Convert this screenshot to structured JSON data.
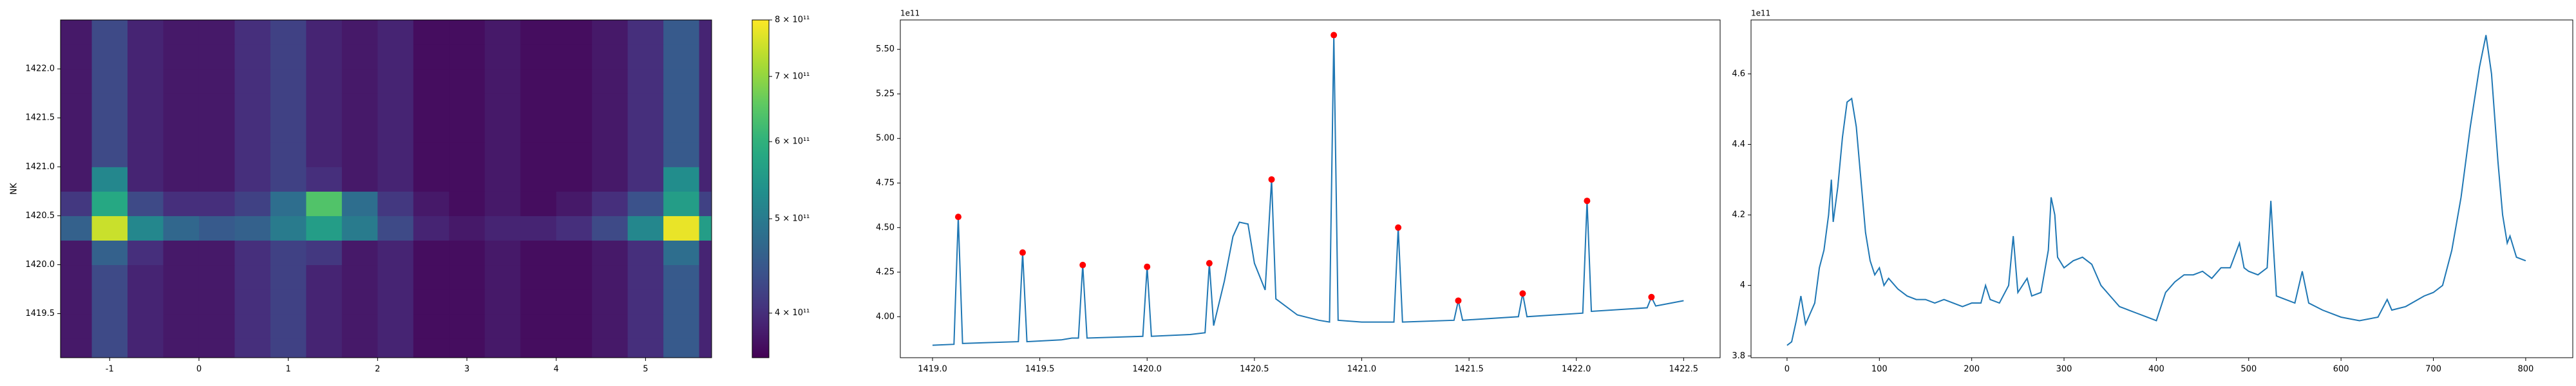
{
  "chart_data": [
    {
      "type": "heatmap",
      "ylabel": "NK",
      "x": [
        -1.4,
        -1.0,
        -0.6,
        -0.2,
        0.2,
        0.6,
        1.0,
        1.4,
        1.8,
        2.2,
        2.6,
        3.0,
        3.4,
        3.8,
        4.2,
        4.6,
        5.0,
        5.4,
        5.8
      ],
      "y": [
        1419.125,
        1419.375,
        1419.625,
        1419.875,
        1420.125,
        1420.375,
        1420.625,
        1420.875,
        1421.125,
        1421.375,
        1421.625,
        1421.875,
        1422.125,
        1422.375
      ],
      "z": [
        [
          380000000000.0,
          430000000000.0,
          390000000000.0,
          380000000000.0,
          380000000000.0,
          400000000000.0,
          420000000000.0,
          390000000000.0,
          380000000000.0,
          390000000000.0,
          370000000000.0,
          370000000000.0,
          380000000000.0,
          370000000000.0,
          370000000000.0,
          380000000000.0,
          400000000000.0,
          450000000000.0,
          390000000000.0
        ],
        [
          380000000000.0,
          430000000000.0,
          390000000000.0,
          380000000000.0,
          380000000000.0,
          400000000000.0,
          420000000000.0,
          390000000000.0,
          380000000000.0,
          390000000000.0,
          370000000000.0,
          370000000000.0,
          380000000000.0,
          370000000000.0,
          370000000000.0,
          380000000000.0,
          400000000000.0,
          450000000000.0,
          390000000000.0
        ],
        [
          380000000000.0,
          430000000000.0,
          390000000000.0,
          380000000000.0,
          380000000000.0,
          400000000000.0,
          420000000000.0,
          390000000000.0,
          380000000000.0,
          390000000000.0,
          370000000000.0,
          370000000000.0,
          380000000000.0,
          370000000000.0,
          370000000000.0,
          380000000000.0,
          400000000000.0,
          450000000000.0,
          390000000000.0
        ],
        [
          380000000000.0,
          430000000000.0,
          390000000000.0,
          380000000000.0,
          380000000000.0,
          400000000000.0,
          420000000000.0,
          390000000000.0,
          380000000000.0,
          390000000000.0,
          370000000000.0,
          370000000000.0,
          380000000000.0,
          370000000000.0,
          370000000000.0,
          380000000000.0,
          400000000000.0,
          450000000000.0,
          390000000000.0
        ],
        [
          380000000000.0,
          460000000000.0,
          400000000000.0,
          380000000000.0,
          380000000000.0,
          400000000000.0,
          420000000000.0,
          410000000000.0,
          380000000000.0,
          390000000000.0,
          370000000000.0,
          370000000000.0,
          380000000000.0,
          370000000000.0,
          370000000000.0,
          380000000000.0,
          400000000000.0,
          480000000000.0,
          390000000000.0
        ],
        [
          460000000000.0,
          750000000000.0,
          520000000000.0,
          470000000000.0,
          450000000000.0,
          460000000000.0,
          500000000000.0,
          560000000000.0,
          500000000000.0,
          430000000000.0,
          390000000000.0,
          380000000000.0,
          390000000000.0,
          390000000000.0,
          400000000000.0,
          430000000000.0,
          520000000000.0,
          780000000000.0,
          560000000000.0
        ],
        [
          410000000000.0,
          580000000000.0,
          430000000000.0,
          400000000000.0,
          400000000000.0,
          420000000000.0,
          480000000000.0,
          640000000000.0,
          480000000000.0,
          410000000000.0,
          380000000000.0,
          370000000000.0,
          380000000000.0,
          370000000000.0,
          380000000000.0,
          400000000000.0,
          440000000000.0,
          560000000000.0,
          420000000000.0
        ],
        [
          380000000000.0,
          520000000000.0,
          390000000000.0,
          380000000000.0,
          380000000000.0,
          400000000000.0,
          420000000000.0,
          400000000000.0,
          380000000000.0,
          390000000000.0,
          370000000000.0,
          370000000000.0,
          380000000000.0,
          370000000000.0,
          370000000000.0,
          380000000000.0,
          400000000000.0,
          530000000000.0,
          390000000000.0
        ],
        [
          380000000000.0,
          430000000000.0,
          390000000000.0,
          380000000000.0,
          380000000000.0,
          400000000000.0,
          420000000000.0,
          390000000000.0,
          380000000000.0,
          390000000000.0,
          370000000000.0,
          370000000000.0,
          380000000000.0,
          370000000000.0,
          370000000000.0,
          380000000000.0,
          400000000000.0,
          450000000000.0,
          390000000000.0
        ],
        [
          380000000000.0,
          430000000000.0,
          390000000000.0,
          380000000000.0,
          380000000000.0,
          400000000000.0,
          420000000000.0,
          390000000000.0,
          380000000000.0,
          390000000000.0,
          370000000000.0,
          370000000000.0,
          380000000000.0,
          370000000000.0,
          370000000000.0,
          380000000000.0,
          400000000000.0,
          450000000000.0,
          390000000000.0
        ],
        [
          380000000000.0,
          430000000000.0,
          390000000000.0,
          380000000000.0,
          380000000000.0,
          400000000000.0,
          420000000000.0,
          390000000000.0,
          380000000000.0,
          390000000000.0,
          370000000000.0,
          370000000000.0,
          380000000000.0,
          370000000000.0,
          370000000000.0,
          380000000000.0,
          400000000000.0,
          450000000000.0,
          390000000000.0
        ],
        [
          380000000000.0,
          430000000000.0,
          390000000000.0,
          380000000000.0,
          380000000000.0,
          400000000000.0,
          420000000000.0,
          390000000000.0,
          380000000000.0,
          390000000000.0,
          370000000000.0,
          370000000000.0,
          380000000000.0,
          370000000000.0,
          370000000000.0,
          380000000000.0,
          400000000000.0,
          450000000000.0,
          390000000000.0
        ],
        [
          380000000000.0,
          430000000000.0,
          390000000000.0,
          380000000000.0,
          380000000000.0,
          400000000000.0,
          420000000000.0,
          390000000000.0,
          380000000000.0,
          390000000000.0,
          370000000000.0,
          370000000000.0,
          380000000000.0,
          370000000000.0,
          370000000000.0,
          380000000000.0,
          400000000000.0,
          450000000000.0,
          390000000000.0
        ],
        [
          380000000000.0,
          430000000000.0,
          390000000000.0,
          380000000000.0,
          380000000000.0,
          400000000000.0,
          420000000000.0,
          390000000000.0,
          380000000000.0,
          390000000000.0,
          370000000000.0,
          370000000000.0,
          380000000000.0,
          370000000000.0,
          370000000000.0,
          380000000000.0,
          400000000000.0,
          450000000000.0,
          390000000000.0
        ]
      ],
      "xlim": [
        -1.55,
        5.74
      ],
      "ylim": [
        1419.05,
        1422.5
      ],
      "xticks": [
        -1,
        0,
        1,
        2,
        3,
        4,
        5
      ],
      "yticks": [
        1419.5,
        {
          "value": 1420,
          "label": "1420.0"
        },
        1420.5,
        {
          "value": 1421,
          "label": "1421.0"
        },
        1421.5,
        {
          "value": 1422,
          "label": "1422.0"
        }
      ],
      "colormap": "viridis",
      "colorbar": {
        "log": true,
        "clim": [
          360000000000.0,
          800000000000.0
        ],
        "ticks": [
          {
            "value": 400000000000.0,
            "label": "4 × 10¹¹"
          },
          {
            "value": 500000000000.0,
            "label": "5 × 10¹¹"
          },
          {
            "value": 600000000000.0,
            "label": "6 × 10¹¹"
          },
          {
            "value": 700000000000.0,
            "label": "7 × 10¹¹"
          },
          {
            "value": 800000000000.0,
            "label": "8 × 10¹¹"
          }
        ]
      }
    },
    {
      "type": "line",
      "offset": "1e11",
      "xlim": [
        1418.85,
        1422.67
      ],
      "ylim": [
        3.77,
        5.665
      ],
      "xticks": [
        {
          "value": 1419,
          "label": "1419.0"
        },
        1419.5,
        {
          "value": 1420,
          "label": "1420.0"
        },
        1420.5,
        {
          "value": 1421,
          "label": "1421.0"
        },
        1421.5,
        {
          "value": 1422,
          "label": "1422.0"
        },
        1422.5
      ],
      "yticks": [
        {
          "value": 4,
          "label": "4.00"
        },
        {
          "value": 4.25,
          "label": "4.25"
        },
        {
          "value": 4.5,
          "label": "4.50"
        },
        {
          "value": 4.75,
          "label": "4.75"
        },
        {
          "value": 5,
          "label": "5.00"
        },
        {
          "value": 5.25,
          "label": "5.25"
        },
        {
          "value": 5.5,
          "label": "5.50"
        }
      ],
      "series": [
        {
          "style": "line",
          "color": "#1f77b4",
          "x": [
            1419.0,
            1419.1,
            1419.12,
            1419.14,
            1419.4,
            1419.42,
            1419.44,
            1419.6,
            1419.65,
            1419.68,
            1419.7,
            1419.72,
            1419.98,
            1420.0,
            1420.02,
            1420.2,
            1420.27,
            1420.29,
            1420.31,
            1420.36,
            1420.4,
            1420.43,
            1420.47,
            1420.5,
            1420.55,
            1420.58,
            1420.6,
            1420.7,
            1420.8,
            1420.85,
            1420.87,
            1420.89,
            1421.0,
            1421.15,
            1421.17,
            1421.19,
            1421.43,
            1421.45,
            1421.47,
            1421.73,
            1421.75,
            1421.77,
            1421.9,
            1422.03,
            1422.05,
            1422.07,
            1422.33,
            1422.35,
            1422.37,
            1422.5
          ],
          "values": [
            3.84,
            3.845,
            4.56,
            3.85,
            3.86,
            4.36,
            3.86,
            3.87,
            3.88,
            3.88,
            4.29,
            3.88,
            3.89,
            4.28,
            3.89,
            3.9,
            3.91,
            4.3,
            3.95,
            4.2,
            4.45,
            4.53,
            4.52,
            4.3,
            4.15,
            4.77,
            4.1,
            4.01,
            3.98,
            3.97,
            5.58,
            3.98,
            3.97,
            3.97,
            4.5,
            3.97,
            3.98,
            4.09,
            3.98,
            4.0,
            4.13,
            4.0,
            4.01,
            4.02,
            4.65,
            4.03,
            4.05,
            4.11,
            4.06,
            4.09
          ]
        },
        {
          "style": "points",
          "color": "#ff0000",
          "x": [
            1419.12,
            1419.42,
            1419.7,
            1420.0,
            1420.29,
            1420.58,
            1420.87,
            1421.17,
            1421.45,
            1421.75,
            1422.05,
            1422.35
          ],
          "values": [
            4.56,
            4.36,
            4.29,
            4.28,
            4.3,
            4.77,
            5.58,
            4.5,
            4.09,
            4.13,
            4.65,
            4.11
          ]
        }
      ]
    },
    {
      "type": "line",
      "offset": "1e11",
      "xlim": [
        -39,
        851
      ],
      "ylim": [
        3.795,
        4.753
      ],
      "xticks": [
        0,
        100,
        200,
        300,
        400,
        500,
        600,
        700,
        800
      ],
      "yticks": [
        3.8,
        4.0,
        4.2,
        4.4,
        4.6
      ],
      "series": [
        {
          "style": "line",
          "color": "#1f77b4",
          "x": [
            0,
            5,
            10,
            15,
            20,
            25,
            30,
            35,
            40,
            45,
            48,
            50,
            55,
            60,
            65,
            70,
            75,
            80,
            85,
            90,
            95,
            100,
            105,
            110,
            120,
            130,
            140,
            150,
            160,
            170,
            180,
            190,
            200,
            210,
            215,
            220,
            230,
            240,
            245,
            250,
            260,
            265,
            275,
            283,
            286,
            290,
            293,
            300,
            310,
            320,
            330,
            340,
            350,
            360,
            370,
            380,
            390,
            400,
            410,
            420,
            430,
            440,
            450,
            460,
            470,
            480,
            490,
            495,
            500,
            510,
            520,
            524,
            527,
            530,
            540,
            550,
            558,
            565,
            580,
            600,
            620,
            640,
            650,
            655,
            670,
            690,
            700,
            710,
            720,
            730,
            740,
            750,
            757,
            763,
            770,
            775,
            780,
            783,
            790,
            800
          ],
          "values": [
            3.83,
            3.84,
            3.9,
            3.97,
            3.89,
            3.92,
            3.95,
            4.05,
            4.1,
            4.2,
            4.3,
            4.18,
            4.28,
            4.42,
            4.52,
            4.53,
            4.45,
            4.3,
            4.15,
            4.07,
            4.03,
            4.05,
            4.0,
            4.02,
            3.99,
            3.97,
            3.96,
            3.96,
            3.95,
            3.96,
            3.95,
            3.94,
            3.95,
            3.95,
            4.0,
            3.96,
            3.95,
            4.0,
            4.14,
            3.98,
            4.02,
            3.97,
            3.98,
            4.1,
            4.25,
            4.2,
            4.08,
            4.05,
            4.07,
            4.08,
            4.06,
            4.0,
            3.97,
            3.94,
            3.93,
            3.92,
            3.91,
            3.9,
            3.98,
            4.01,
            4.03,
            4.03,
            4.04,
            4.02,
            4.05,
            4.05,
            4.12,
            4.05,
            4.04,
            4.03,
            4.05,
            4.24,
            4.1,
            3.97,
            3.96,
            3.95,
            4.04,
            3.95,
            3.93,
            3.91,
            3.9,
            3.91,
            3.96,
            3.93,
            3.94,
            3.97,
            3.98,
            4.0,
            4.1,
            4.25,
            4.45,
            4.62,
            4.71,
            4.6,
            4.35,
            4.2,
            4.12,
            4.14,
            4.08,
            4.07
          ]
        }
      ]
    }
  ]
}
